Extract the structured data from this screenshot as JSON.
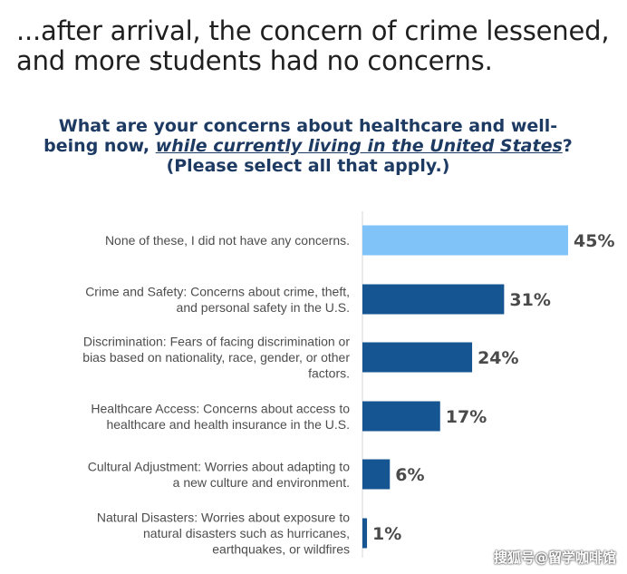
{
  "headline": {
    "line1": "...after arrival, the concern of crime lessened,",
    "line2": "and more students had no concerns."
  },
  "question": {
    "part1": "What are your concerns about healthcare and well-being now,",
    "emphasis": "while currently living in the United States",
    "part2": "? (Please select all that apply.)"
  },
  "chart_data": {
    "type": "bar",
    "orientation": "horizontal",
    "categories": [
      "None of these, I did not have any concerns.",
      "Crime and Safety: Concerns about crime, theft, and personal safety in the U.S.",
      "Discrimination: Fears of facing discrimination or bias based on nationality, race, gender, or other factors.",
      "Healthcare Access: Concerns about access to healthcare and health insurance in the U.S.",
      "Cultural Adjustment: Worries about adapting to a new culture and environment.",
      "Natural Disasters: Worries about exposure to natural disasters such as hurricanes, earthquakes, or wildfires"
    ],
    "category_lines": [
      [
        "None of these, I did not have any concerns."
      ],
      [
        "Crime and Safety: Concerns about crime, theft,",
        "and personal safety in the U.S."
      ],
      [
        "Discrimination: Fears of facing discrimination or",
        "bias based on nationality, race, gender, or other",
        "factors."
      ],
      [
        "Healthcare Access: Concerns about access to",
        "healthcare and health insurance in the U.S."
      ],
      [
        "Cultural Adjustment: Worries about adapting to",
        "a new culture and environment."
      ],
      [
        "Natural Disasters: Worries about exposure to",
        "natural disasters such as hurricanes,",
        "earthquakes, or wildfires"
      ]
    ],
    "values": [
      45,
      31,
      24,
      17,
      6,
      1
    ],
    "value_labels": [
      "45%",
      "31%",
      "24%",
      "17%",
      "6%",
      "1%"
    ],
    "bar_colors": [
      "#7fc3f8",
      "#155592",
      "#155592",
      "#155592",
      "#155592",
      "#155592"
    ],
    "xlim": [
      0,
      50
    ],
    "grid": false
  },
  "watermark": "搜狐号@留学咖啡馆"
}
